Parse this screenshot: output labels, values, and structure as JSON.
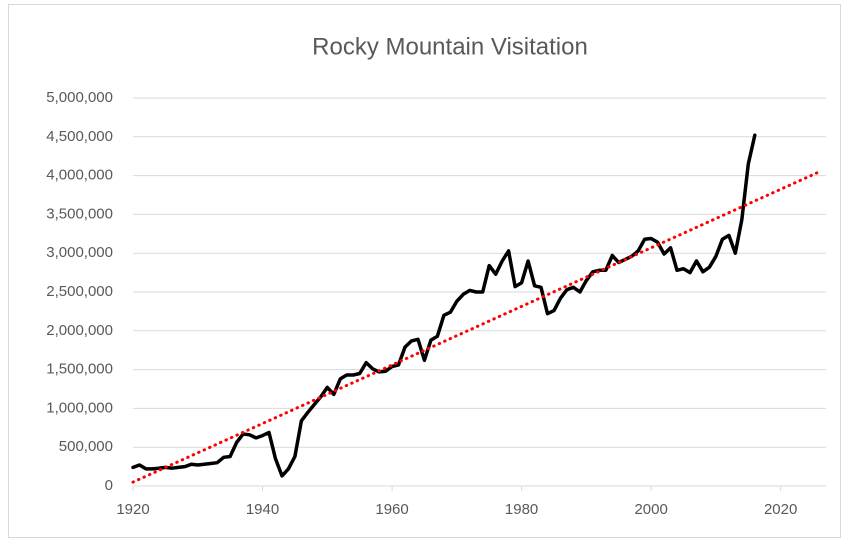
{
  "chart_data": {
    "type": "line",
    "title": "Rocky Mountain Visitation",
    "xlim": [
      1920,
      2027
    ],
    "xticks": [
      1920,
      1940,
      1960,
      1980,
      2000,
      2020
    ],
    "ylim": [
      0,
      5000000
    ],
    "yticks": [
      0,
      {
        "value": 500000,
        "label": "500,000"
      },
      {
        "value": 1000000,
        "label": "1,000,000"
      },
      {
        "value": 1500000,
        "label": "1,500,000"
      },
      {
        "value": 2000000,
        "label": "2,000,000"
      },
      {
        "value": 2500000,
        "label": "2,500,000"
      },
      {
        "value": 3000000,
        "label": "3,000,000"
      },
      {
        "value": 3500000,
        "label": "3,500,000"
      },
      {
        "value": 4000000,
        "label": "4,000,000"
      },
      {
        "value": 4500000,
        "label": "4,500,000"
      },
      {
        "value": 5000000,
        "label": "5,000,000"
      }
    ],
    "grid": true,
    "series": [
      {
        "color": "#000000",
        "style": "solid",
        "x": [
          1920,
          1921,
          1922,
          1923,
          1924,
          1925,
          1926,
          1927,
          1928,
          1929,
          1930,
          1931,
          1932,
          1933,
          1934,
          1935,
          1936,
          1937,
          1938,
          1939,
          1940,
          1941,
          1942,
          1943,
          1944,
          1945,
          1946,
          1947,
          1948,
          1949,
          1950,
          1951,
          1952,
          1953,
          1954,
          1955,
          1956,
          1957,
          1958,
          1959,
          1960,
          1961,
          1962,
          1963,
          1964,
          1965,
          1966,
          1967,
          1968,
          1969,
          1970,
          1971,
          1972,
          1973,
          1974,
          1975,
          1976,
          1977,
          1978,
          1979,
          1980,
          1981,
          1982,
          1983,
          1984,
          1985,
          1986,
          1987,
          1988,
          1989,
          1990,
          1991,
          1992,
          1993,
          1994,
          1995,
          1996,
          1997,
          1998,
          1999,
          2000,
          2001,
          2002,
          2003,
          2004,
          2005,
          2006,
          2007,
          2008,
          2009,
          2010,
          2011,
          2012,
          2013,
          2014,
          2015,
          2016
        ],
        "values": [
          240000,
          270000,
          220000,
          220000,
          230000,
          240000,
          230000,
          240000,
          250000,
          280000,
          270000,
          280000,
          290000,
          300000,
          370000,
          380000,
          560000,
          670000,
          660000,
          620000,
          650000,
          690000,
          350000,
          130000,
          220000,
          380000,
          840000,
          950000,
          1050000,
          1150000,
          1270000,
          1180000,
          1380000,
          1430000,
          1430000,
          1450000,
          1590000,
          1510000,
          1470000,
          1480000,
          1540000,
          1560000,
          1790000,
          1870000,
          1890000,
          1620000,
          1880000,
          1930000,
          2200000,
          2240000,
          2380000,
          2470000,
          2520000,
          2500000,
          2500000,
          2840000,
          2730000,
          2900000,
          3030000,
          2570000,
          2620000,
          2900000,
          2580000,
          2560000,
          2220000,
          2260000,
          2420000,
          2530000,
          2560000,
          2500000,
          2650000,
          2760000,
          2780000,
          2780000,
          2970000,
          2880000,
          2920000,
          2960000,
          3030000,
          3180000,
          3190000,
          3140000,
          2990000,
          3070000,
          2780000,
          2800000,
          2750000,
          2900000,
          2760000,
          2820000,
          2960000,
          3180000,
          3230000,
          3000000,
          3430000,
          4150000,
          4520000
        ]
      },
      {
        "color": "#ff0000",
        "style": "dotted",
        "x": [
          1920,
          2026
        ],
        "values": [
          50000,
          4050000
        ]
      }
    ]
  }
}
